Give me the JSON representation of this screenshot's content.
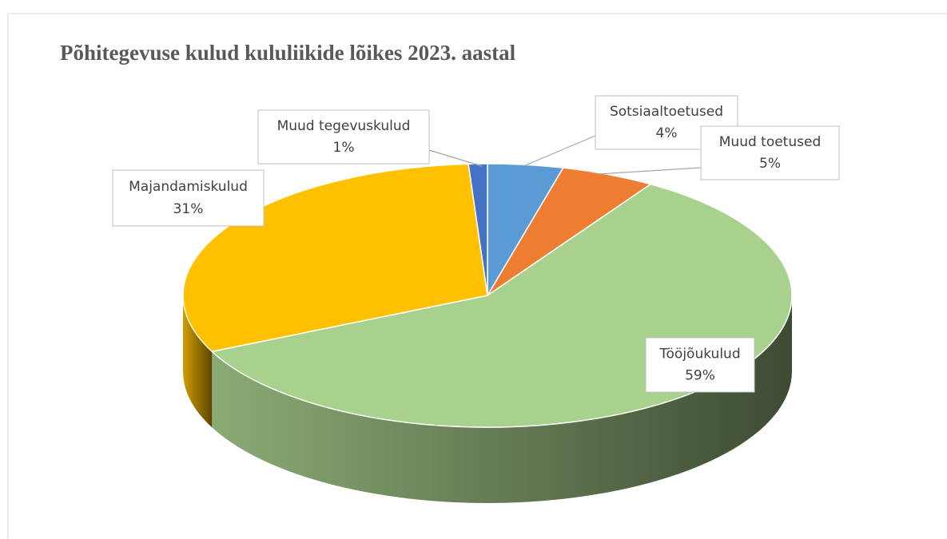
{
  "chart_data": {
    "type": "pie3d",
    "title": "Põhitegevuse kulud kululiikide lõikes 2023. aastal",
    "categories": [
      "Sotsiaaltoetused",
      "Muud toetused",
      "Tööjõukulud",
      "Majandamiskulud",
      "Muud tegevuskulud"
    ],
    "values": [
      4,
      5,
      59,
      31,
      1
    ],
    "value_labels": [
      "4%",
      "5%",
      "59%",
      "31%",
      "1%"
    ],
    "colors": [
      "#5b9bd5",
      "#ed7d31",
      "#a9d18e",
      "#ffc000",
      "#4472c4"
    ]
  }
}
